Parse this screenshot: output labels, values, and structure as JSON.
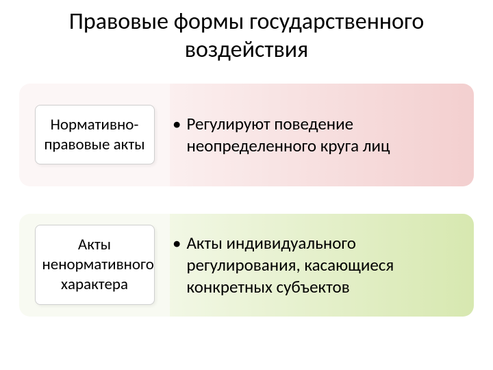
{
  "title": "Правовые формы государственного воздействия",
  "title_fontsize": 34,
  "rows": [
    {
      "left_label": "Нормативно-правовые акты",
      "bullet": "Регулируют поведение неопределенного круга лиц",
      "gradient_start": "#ffffff",
      "gradient_end": "#f3cfcf",
      "left_bg": "#fcf6f6"
    },
    {
      "left_label": "Акты ненормативного характера",
      "bullet": "Акты индивидуального регулирования, касающиеся конкретных субъектов",
      "gradient_start": "#ffffff",
      "gradient_end": "#d7e8b0",
      "left_bg": "#f8faf2"
    }
  ],
  "label_fontsize": 23,
  "bullet_fontsize": 25,
  "bullet_char": "•",
  "text_color": "#000000",
  "background": "#ffffff"
}
